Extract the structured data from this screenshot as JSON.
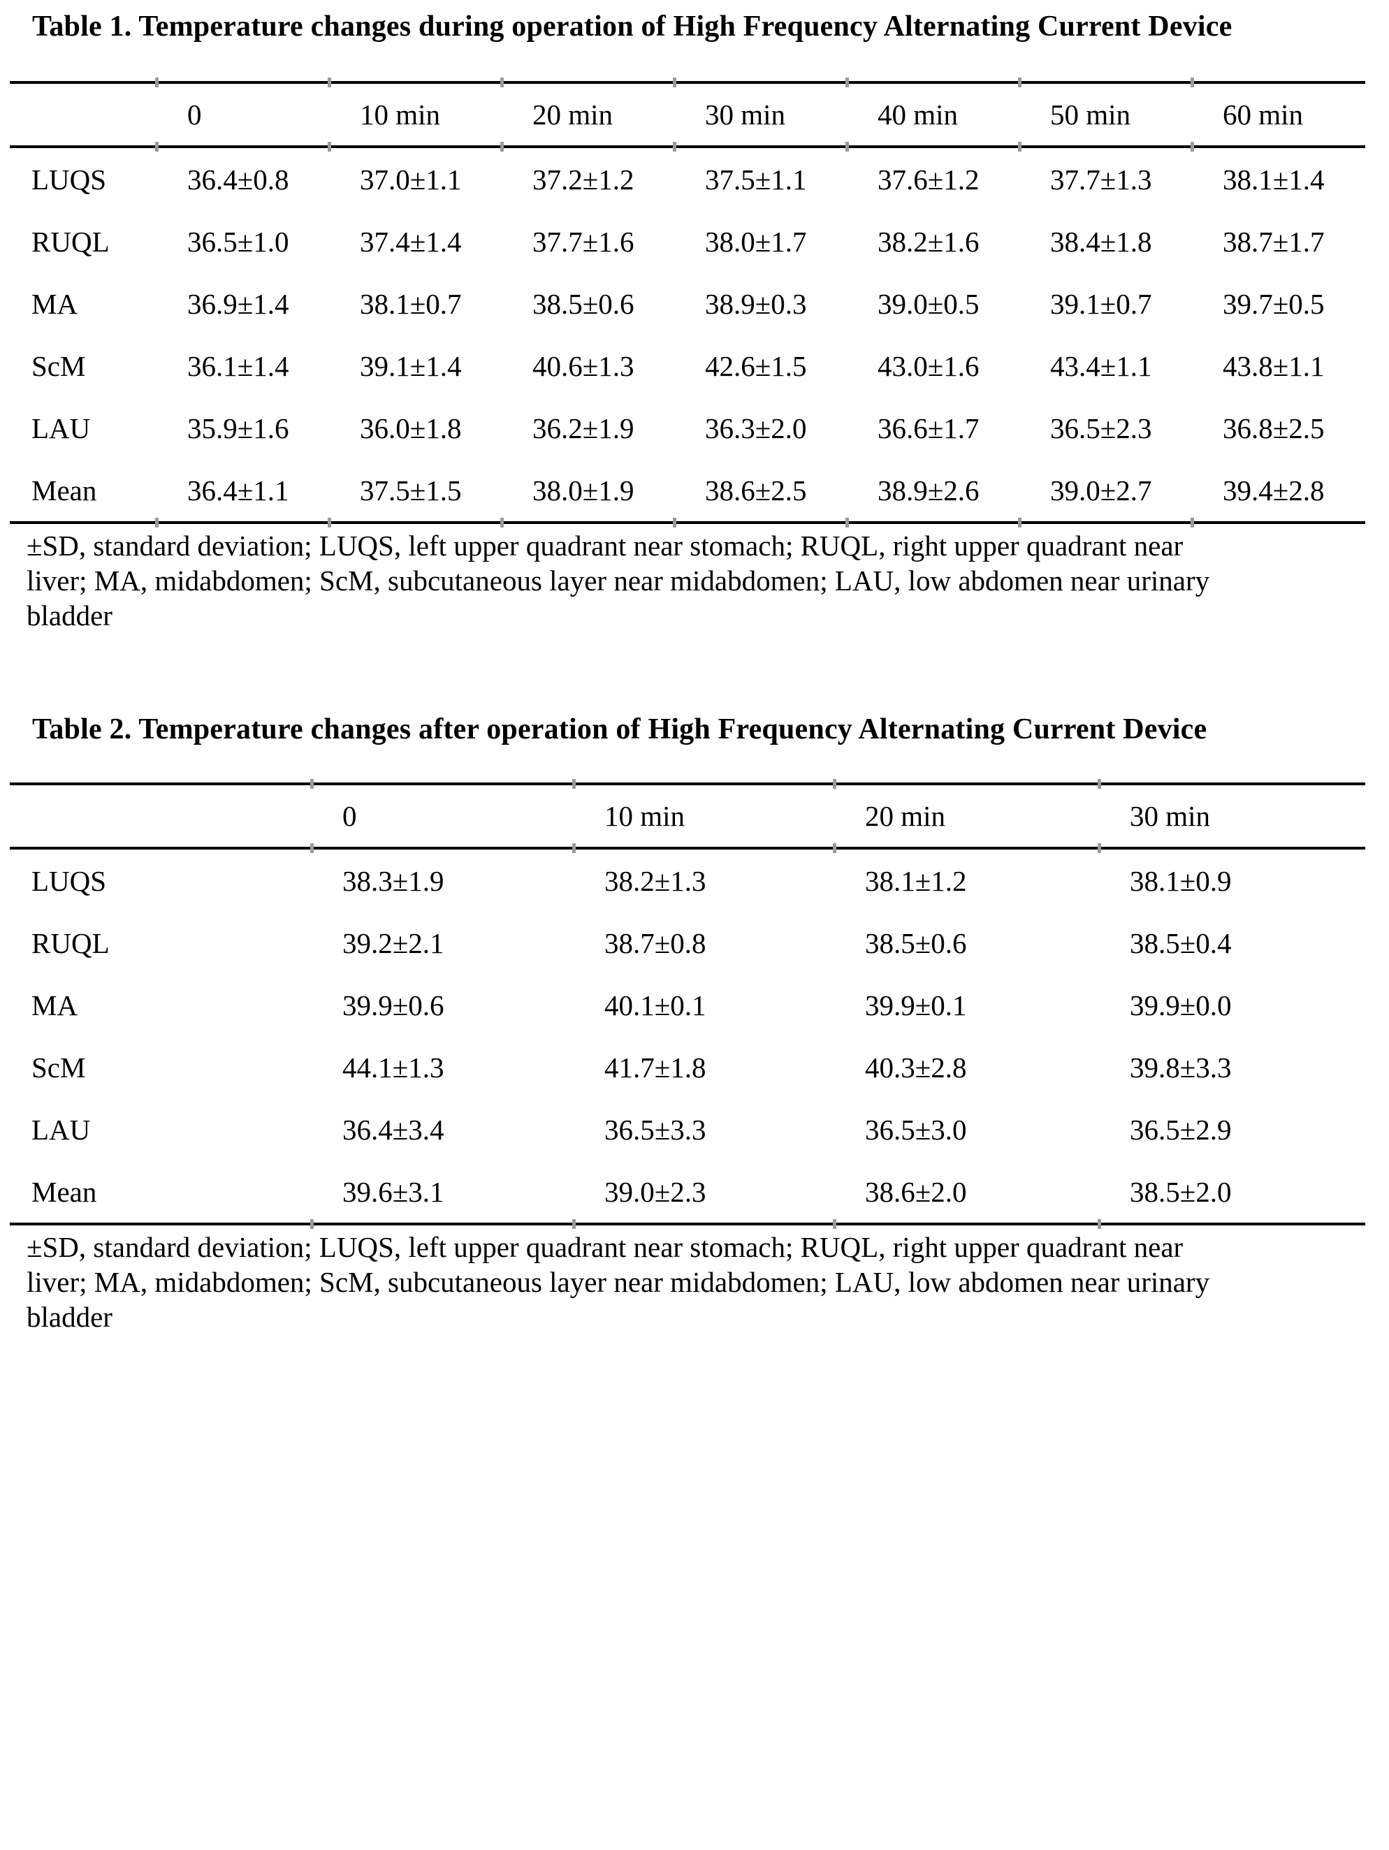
{
  "page": {
    "background_color": "#ffffff",
    "text_color": "#000000"
  },
  "table1": {
    "title": "Table 1. Temperature changes during operation of High Frequency Alternating Current Device",
    "columns": [
      "0",
      "10 min",
      "20 min",
      "30 min",
      "40 min",
      "50 min",
      "60 min"
    ],
    "rows": [
      {
        "label": "LUQS",
        "values": [
          "36.4±0.8",
          "37.0±1.1",
          "37.2±1.2",
          "37.5±1.1",
          "37.6±1.2",
          "37.7±1.3",
          "38.1±1.4"
        ]
      },
      {
        "label": "RUQL",
        "values": [
          "36.5±1.0",
          "37.4±1.4",
          "37.7±1.6",
          "38.0±1.7",
          "38.2±1.6",
          "38.4±1.8",
          "38.7±1.7"
        ]
      },
      {
        "label": "MA",
        "values": [
          "36.9±1.4",
          "38.1±0.7",
          "38.5±0.6",
          "38.9±0.3",
          "39.0±0.5",
          "39.1±0.7",
          "39.7±0.5"
        ]
      },
      {
        "label": "ScM",
        "values": [
          "36.1±1.4",
          "39.1±1.4",
          "40.6±1.3",
          "42.6±1.5",
          "43.0±1.6",
          "43.4±1.1",
          "43.8±1.1"
        ]
      },
      {
        "label": "LAU",
        "values": [
          "35.9±1.6",
          "36.0±1.8",
          "36.2±1.9",
          "36.3±2.0",
          "36.6±1.7",
          "36.5±2.3",
          "36.8±2.5"
        ]
      },
      {
        "label": "Mean",
        "values": [
          "36.4±1.1",
          "37.5±1.5",
          "38.0±1.9",
          "38.6±2.5",
          "38.9±2.6",
          "39.0±2.7",
          "39.4±2.8"
        ]
      }
    ],
    "footnote_lines": [
      "±SD, standard deviation; LUQS, left upper quadrant near stomach; RUQL, right upper quadrant near",
      "liver; MA, midabdomen; ScM, subcutaneous layer near midabdomen; LAU, low abdomen near urinary",
      "bladder"
    ]
  },
  "table2": {
    "title": "Table 2. Temperature changes after operation of High Frequency Alternating Current Device",
    "columns": [
      "0",
      "10 min",
      "20 min",
      "30 min"
    ],
    "rows": [
      {
        "label": "LUQS",
        "values": [
          "38.3±1.9",
          "38.2±1.3",
          "38.1±1.2",
          "38.1±0.9"
        ]
      },
      {
        "label": "RUQL",
        "values": [
          "39.2±2.1",
          "38.7±0.8",
          "38.5±0.6",
          "38.5±0.4"
        ]
      },
      {
        "label": "MA",
        "values": [
          "39.9±0.6",
          "40.1±0.1",
          "39.9±0.1",
          "39.9±0.0"
        ]
      },
      {
        "label": "ScM",
        "values": [
          "44.1±1.3",
          "41.7±1.8",
          "40.3±2.8",
          "39.8±3.3"
        ]
      },
      {
        "label": "LAU",
        "values": [
          "36.4±3.4",
          "36.5±3.3",
          "36.5±3.0",
          "36.5±2.9"
        ]
      },
      {
        "label": "Mean",
        "values": [
          "39.6±3.1",
          "39.0±2.3",
          "38.6±2.0",
          "38.5±2.0"
        ]
      }
    ],
    "footnote_lines": [
      "±SD, standard deviation; LUQS, left upper quadrant near stomach; RUQL, right upper quadrant near",
      "liver; MA, midabdomen; ScM, subcutaneous layer near midabdomen; LAU, low abdomen near urinary",
      "bladder"
    ]
  }
}
